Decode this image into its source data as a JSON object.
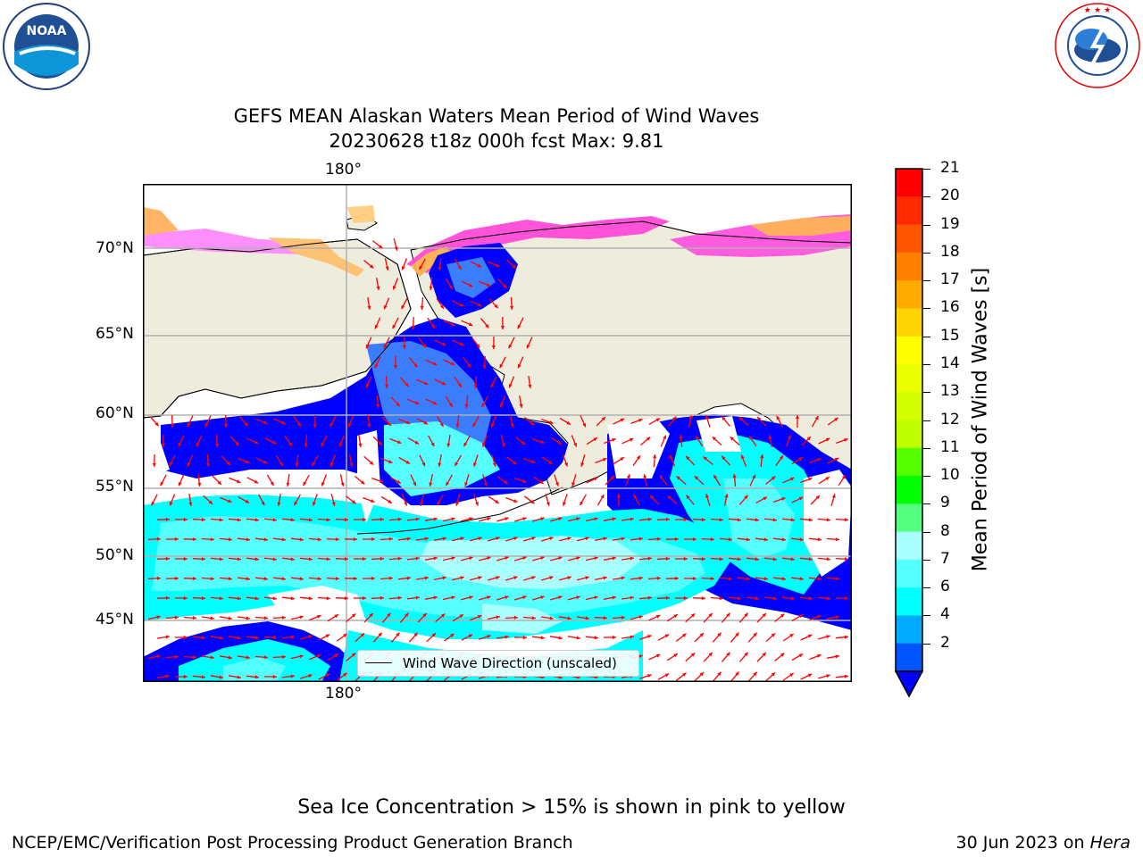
{
  "header": {
    "title_line1": "GEFS MEAN Alaskan Waters Mean Period of Wind Waves",
    "title_line2": "20230628 t18z 000h fcst   Max: 9.81"
  },
  "logos": {
    "noaa_text": "NOAA",
    "noaa_ring_text": "NATIONAL OCEANIC AND ATMOSPHERIC ADMINISTRATION · U.S. DEPARTMENT OF COMMERCE",
    "nws_ring_text": "NATIONAL WEATHER SERVICE"
  },
  "map": {
    "lon_label_top": "180°",
    "lon_label_bottom": "180°",
    "lat_labels": [
      "70°N",
      "65°N",
      "60°N",
      "55°N",
      "50°N",
      "45°N"
    ],
    "legend_label": "Wind Wave Direction (unscaled)",
    "colors": {
      "land": "#eeecdc",
      "ocean_low": "#0000ff",
      "ocean_mid": "#00ffff",
      "arrow": "#ff0000"
    }
  },
  "colorbar": {
    "label": "Mean Period of Wind Waves [s]",
    "ticks": [
      "21",
      "20",
      "19",
      "18",
      "17",
      "16",
      "15",
      "14",
      "13",
      "12",
      "11",
      "10",
      "9",
      "8",
      "7",
      "6",
      "4",
      "2"
    ],
    "colors": [
      "#ff0000",
      "#ff2a00",
      "#ff5500",
      "#ff8000",
      "#ffaa00",
      "#ffd400",
      "#ffff00",
      "#eaff00",
      "#d4ff00",
      "#bfff00",
      "#55ff00",
      "#00ff00",
      "#55ff7f",
      "#aaffff",
      "#55ffff",
      "#00ffff",
      "#00aaff",
      "#0055ff"
    ],
    "extend_color": "#0000ff"
  },
  "footer": {
    "note": "Sea Ice Concentration > 15% is shown in pink to yellow",
    "left": "NCEP/EMC/Verification Post Processing Product Generation Branch",
    "right_prefix": "30 Jun 2023 on ",
    "right_machine": "Hera"
  }
}
